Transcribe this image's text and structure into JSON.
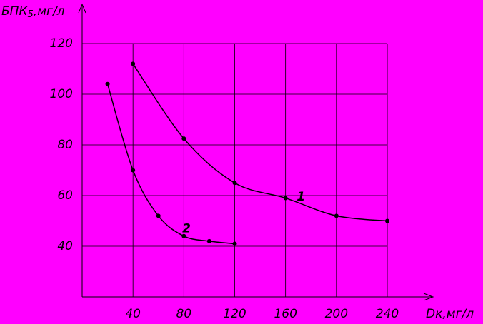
{
  "chart_data": {
    "type": "line",
    "y_label": {
      "main": "БПК",
      "sub": "5",
      "unit": ",мг/л"
    },
    "x_label": "Dк,мг/л",
    "xlim": [
      0,
      240
    ],
    "ylim": [
      20,
      120
    ],
    "xticks": [
      40,
      80,
      120,
      160,
      200,
      240
    ],
    "yticks": [
      40,
      60,
      80,
      100,
      120
    ],
    "grid": true,
    "series": [
      {
        "name": "1",
        "color": "#000000",
        "x": [
          40,
          80,
          120,
          160,
          200,
          240
        ],
        "values": [
          112,
          82.5,
          65,
          59,
          52,
          50
        ]
      },
      {
        "name": "2",
        "color": "#000000",
        "x": [
          20,
          40,
          60,
          80,
          100,
          120
        ],
        "values": [
          104,
          70,
          52,
          44,
          42,
          41
        ]
      }
    ]
  }
}
